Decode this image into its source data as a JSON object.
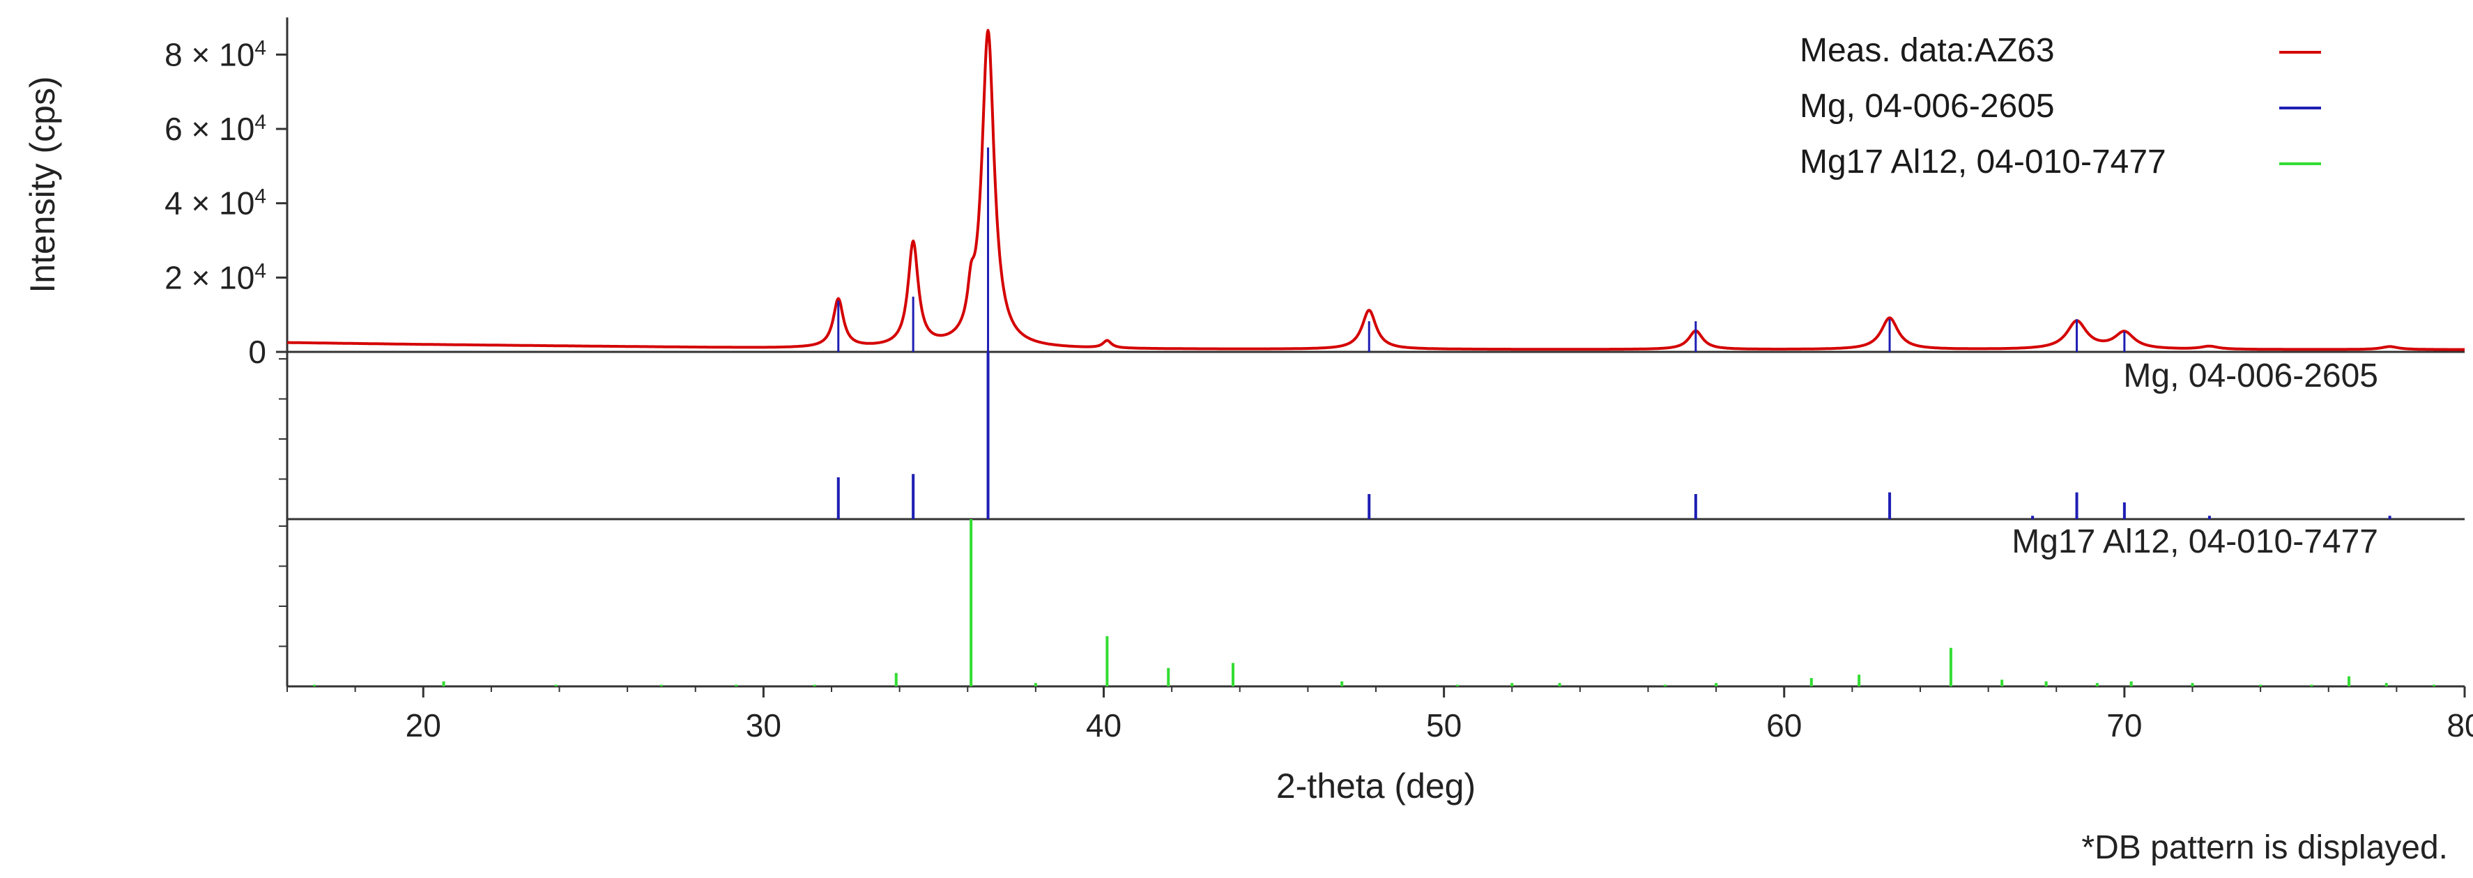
{
  "chart_data": {
    "type": "line",
    "xlabel": "2-theta (deg)",
    "ylabel": "Intensity (cps)",
    "xlim": [
      16,
      80
    ],
    "ylim": [
      0,
      90000
    ],
    "x_ticks": [
      20,
      30,
      40,
      50,
      60,
      70,
      80
    ],
    "x_tick_labels": [
      "20",
      "30",
      "40",
      "50",
      "60",
      "70",
      "80"
    ],
    "y_ticks": [
      0,
      20000,
      40000,
      60000,
      80000
    ],
    "y_tick_labels": [
      {
        "base": "0",
        "exp": ""
      },
      {
        "base": "2 × 10",
        "exp": "4"
      },
      {
        "base": "4 × 10",
        "exp": "4"
      },
      {
        "base": "6 × 10",
        "exp": "4"
      },
      {
        "base": "8 × 10",
        "exp": "4"
      }
    ],
    "legend_position": "top-right",
    "series": [
      {
        "name": "Meas. data:AZ63",
        "color": "#d40000",
        "peaks": [
          {
            "x": 32.2,
            "y": 13000,
            "w": 0.18
          },
          {
            "x": 34.4,
            "y": 28000,
            "w": 0.18
          },
          {
            "x": 36.1,
            "y": 9000,
            "w": 0.12
          },
          {
            "x": 36.6,
            "y": 85000,
            "w": 0.22
          },
          {
            "x": 40.1,
            "y": 2000,
            "w": 0.15
          },
          {
            "x": 47.8,
            "y": 10500,
            "w": 0.25
          },
          {
            "x": 57.4,
            "y": 5000,
            "w": 0.25
          },
          {
            "x": 63.1,
            "y": 8500,
            "w": 0.3
          },
          {
            "x": 68.6,
            "y": 7500,
            "w": 0.35
          },
          {
            "x": 70.0,
            "y": 4500,
            "w": 0.35
          },
          {
            "x": 72.5,
            "y": 800,
            "w": 0.3
          },
          {
            "x": 77.8,
            "y": 800,
            "w": 0.3
          }
        ],
        "baseline": [
          [
            16,
            2500
          ],
          [
            20,
            2000
          ],
          [
            30,
            1000
          ],
          [
            40,
            700
          ],
          [
            60,
            600
          ],
          [
            80,
            600
          ]
        ]
      }
    ],
    "reference_patterns": [
      {
        "name": "Mg, 04-006-2605",
        "panel_label": "Mg, 04-006-2605",
        "color": "#1e1eb4",
        "relative_max": 100,
        "lines": [
          [
            32.2,
            25
          ],
          [
            34.4,
            27
          ],
          [
            36.6,
            100
          ],
          [
            47.8,
            15
          ],
          [
            57.4,
            15
          ],
          [
            63.1,
            16
          ],
          [
            67.3,
            2
          ],
          [
            68.6,
            16
          ],
          [
            70.0,
            10
          ],
          [
            72.5,
            2
          ],
          [
            77.8,
            2
          ]
        ],
        "overlay_scale": 55000
      },
      {
        "name": "Mg17 Al12, 04-010-7477",
        "panel_label": "Mg17 Al12, 04-010-7477",
        "color": "#33dd33",
        "relative_max": 100,
        "lines": [
          [
            16.8,
            1
          ],
          [
            20.6,
            3
          ],
          [
            23.9,
            1
          ],
          [
            27.0,
            1
          ],
          [
            29.2,
            1
          ],
          [
            31.5,
            1
          ],
          [
            33.9,
            8
          ],
          [
            36.1,
            100
          ],
          [
            38.0,
            2
          ],
          [
            40.1,
            30
          ],
          [
            41.9,
            11
          ],
          [
            43.8,
            14
          ],
          [
            47.0,
            3
          ],
          [
            50.4,
            1
          ],
          [
            52.0,
            2
          ],
          [
            53.4,
            2
          ],
          [
            56.5,
            1
          ],
          [
            58.0,
            2
          ],
          [
            60.8,
            5
          ],
          [
            62.2,
            7
          ],
          [
            64.9,
            23
          ],
          [
            66.4,
            4
          ],
          [
            67.7,
            3
          ],
          [
            69.2,
            2
          ],
          [
            70.2,
            3
          ],
          [
            72.0,
            2
          ],
          [
            74.0,
            1
          ],
          [
            75.5,
            1
          ],
          [
            76.6,
            6
          ],
          [
            77.7,
            2
          ],
          [
            79.1,
            1
          ]
        ]
      }
    ],
    "annotation": "*DB pattern is displayed."
  }
}
